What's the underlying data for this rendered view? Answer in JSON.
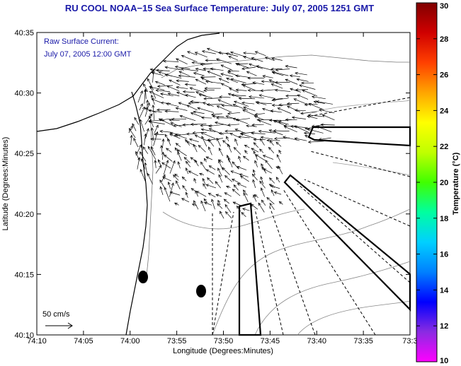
{
  "title": "RU COOL  NOAA−15  Sea Surface Temperature:  July 07, 2005 1251 GMT",
  "legend": {
    "line1": "Raw Surface Current:",
    "line2": "July 07, 2005 12:00 GMT",
    "scale_label": "50 cm/s"
  },
  "map": {
    "xlabel": "Longitude (Degrees:Minutes)",
    "ylabel": "Latitude (Degrees:Minutes)",
    "xticks": [
      "74:10",
      "74:05",
      "74:00",
      "73:55",
      "73:50",
      "73:45",
      "73:40",
      "73:35",
      "73:3"
    ],
    "yticks": [
      "40:35",
      "40:30",
      "40:25",
      "40:20",
      "40:15",
      "40:10"
    ]
  },
  "colorbar": {
    "label": "Temperature (°C)",
    "ticks": [
      "30",
      "28",
      "26",
      "24",
      "22",
      "20",
      "18",
      "16",
      "14",
      "12",
      "10"
    ],
    "colors": [
      "#ff00ff",
      "#8a2be2",
      "#0000ff",
      "#0080ff",
      "#00d0ff",
      "#00ffa0",
      "#40ff00",
      "#c0ff00",
      "#ffff00",
      "#ffa500",
      "#ff4000",
      "#d00000",
      "#800000"
    ]
  }
}
